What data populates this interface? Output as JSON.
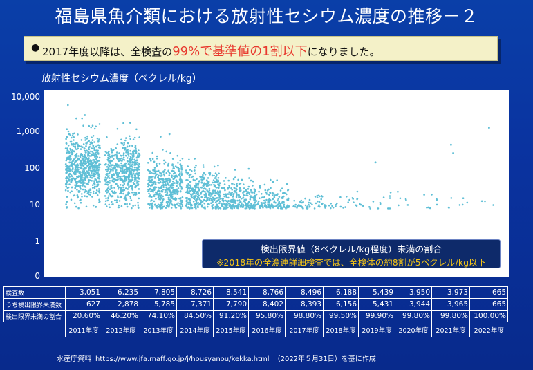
{
  "title": "福島県魚介類における放射性セシウム濃度の推移－２",
  "note": {
    "pre": "2017年度以降は、全検査の",
    "highlight": "99%で基準値の1割以下",
    "post": "になりました。",
    "highlight_color": "#e8392e"
  },
  "legend": {
    "line1": "検出限界値（8ベクレル/kg程度）未満の割合",
    "line2": "※2018年の全漁連詳細検査では、全検体の約8割が5ベクレル/kg以下"
  },
  "table": {
    "row_labels": [
      "検査数",
      "うち検出限界未満数",
      "検出限界未満の割合"
    ],
    "inspections": [
      "3,051",
      "6,235",
      "7,805",
      "8,726",
      "8,541",
      "8,766",
      "8,496",
      "6,188",
      "5,439",
      "3,950",
      "3,973",
      "665"
    ],
    "below_limit": [
      "627",
      "2,878",
      "5,785",
      "7,371",
      "7,790",
      "8,402",
      "8,393",
      "6,156",
      "5,431",
      "3,944",
      "3,965",
      "665"
    ],
    "ratio": [
      "20.60%",
      "46.20%",
      "74.10%",
      "84.50%",
      "91.20%",
      "95.80%",
      "98.80%",
      "99.50%",
      "99.90%",
      "99.80%",
      "99.80%",
      "100.00%"
    ]
  },
  "source": {
    "prefix": "水産庁資料",
    "url": "https://www.jfa.maff.go.jp/j/housyanou/kekka.html",
    "suffix": "（2022年５月31日）を基に作成"
  },
  "chart_data": {
    "type": "scatter",
    "ylabel": "放射性セシウム濃度（ベクレル/kg）",
    "yscale": "log",
    "yticks": [
      "10,000",
      "1,000",
      "100",
      "10",
      "1",
      "0"
    ],
    "ytick_values": [
      10000,
      1000,
      100,
      10,
      1,
      0
    ],
    "categories": [
      "2011年度",
      "2012年度",
      "2013年度",
      "2014年度",
      "2015年度",
      "2016年度",
      "2017年度",
      "2018年度",
      "2019年度",
      "2020年度",
      "2021年度",
      "2022年度"
    ],
    "marker_color": "#5fbfd6",
    "series": [
      {
        "values": [
          {
            "year": "2011年度",
            "median": 110,
            "spread": 0.45,
            "n": 650
          },
          {
            "year": "2012年度",
            "median": 70,
            "spread": 0.45,
            "n": 560
          },
          {
            "year": "2013年度",
            "median": 30,
            "spread": 0.4,
            "n": 450
          },
          {
            "year": "2014年度",
            "median": 20,
            "spread": 0.35,
            "n": 360
          },
          {
            "year": "2015年度",
            "median": 14,
            "spread": 0.3,
            "n": 260
          },
          {
            "year": "2016年度",
            "median": 11,
            "spread": 0.25,
            "n": 170
          },
          {
            "year": "2017年度",
            "median": 9.5,
            "spread": 0.18,
            "n": 60
          },
          {
            "year": "2018年度",
            "median": 10,
            "spread": 0.15,
            "n": 26
          },
          {
            "year": "2019年度",
            "median": 10,
            "spread": 0.14,
            "n": 14
          },
          {
            "year": "2020年度",
            "median": 11,
            "spread": 0.14,
            "n": 10
          },
          {
            "year": "2021年度",
            "median": 11,
            "spread": 0.16,
            "n": 10
          },
          {
            "year": "2022年度",
            "median": 10,
            "spread": 0.12,
            "n": 3
          }
        ]
      }
    ],
    "outliers": [
      {
        "year": "2011年度",
        "y": 3000
      },
      {
        "year": "2011年度",
        "y": 1500
      },
      {
        "year": "2012年度",
        "y": 1800
      },
      {
        "year": "2013年度",
        "y": 900
      },
      {
        "year": "2019年度",
        "y": 150
      },
      {
        "year": "2021年度",
        "y": 460
      },
      {
        "year": "2021年度",
        "y": 270
      },
      {
        "year": "2022年度",
        "y": 1350
      }
    ]
  }
}
